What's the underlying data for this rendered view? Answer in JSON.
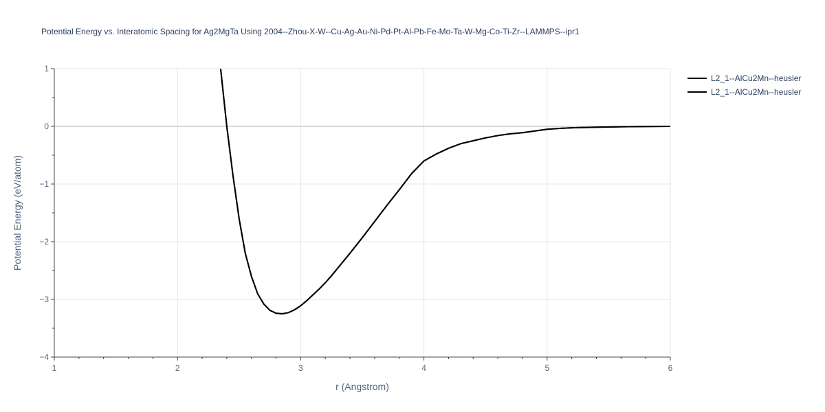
{
  "chart_data": {
    "type": "line",
    "title": "Potential Energy vs. Interatomic Spacing for Ag2MgTa Using 2004--Zhou-X-W--Cu-Ag-Au-Ni-Pd-Pt-Al-Pb-Fe-Mo-Ta-W-Mg-Co-Ti-Zr--LAMMPS--ipr1",
    "xlabel": "r (Angstrom)",
    "ylabel": "Potential Energy (eV/atom)",
    "xlim": [
      1,
      6
    ],
    "ylim": [
      -4,
      1
    ],
    "xticks": [
      1,
      2,
      3,
      4,
      5,
      6
    ],
    "yticks": [
      1,
      0,
      -1,
      -2,
      -3,
      -4
    ],
    "xtick_labels": [
      "1",
      "2",
      "3",
      "4",
      "5",
      "6"
    ],
    "ytick_labels": [
      "1",
      "0",
      "−1",
      "−2",
      "−3",
      "−4"
    ],
    "grid": true,
    "legend_position": "top-right",
    "series": [
      {
        "name": "L2_1--AlCu2Mn--heusler",
        "color": "#000000",
        "x": [
          2.35,
          2.4,
          2.45,
          2.5,
          2.55,
          2.6,
          2.65,
          2.7,
          2.75,
          2.8,
          2.85,
          2.9,
          2.95,
          3.0,
          3.05,
          3.1,
          3.15,
          3.2,
          3.25,
          3.3,
          3.4,
          3.5,
          3.6,
          3.7,
          3.8,
          3.9,
          4.0,
          4.1,
          4.2,
          4.3,
          4.4,
          4.5,
          4.6,
          4.7,
          4.8,
          4.9,
          5.0,
          5.1,
          5.2,
          5.4,
          5.6,
          5.8,
          6.0
        ],
        "y": [
          1.0,
          0.0,
          -0.85,
          -1.6,
          -2.2,
          -2.6,
          -2.9,
          -3.08,
          -3.19,
          -3.24,
          -3.25,
          -3.23,
          -3.18,
          -3.11,
          -3.02,
          -2.92,
          -2.82,
          -2.71,
          -2.59,
          -2.46,
          -2.2,
          -1.93,
          -1.65,
          -1.37,
          -1.1,
          -0.82,
          -0.6,
          -0.48,
          -0.38,
          -0.3,
          -0.25,
          -0.2,
          -0.16,
          -0.13,
          -0.11,
          -0.08,
          -0.05,
          -0.035,
          -0.025,
          -0.015,
          -0.008,
          -0.003,
          0.0
        ]
      },
      {
        "name": "L2_1--AlCu2Mn--heusler",
        "color": "#000000",
        "x": [
          2.35,
          2.4,
          2.45,
          2.5,
          2.55,
          2.6,
          2.65,
          2.7,
          2.75,
          2.8,
          2.85,
          2.9,
          2.95,
          3.0,
          3.05,
          3.1,
          3.15,
          3.2,
          3.25,
          3.3,
          3.4,
          3.5,
          3.6,
          3.7,
          3.8,
          3.9,
          4.0,
          4.1,
          4.2,
          4.3,
          4.4,
          4.5,
          4.6,
          4.7,
          4.8,
          4.9,
          5.0,
          5.1,
          5.2,
          5.4,
          5.6,
          5.8,
          6.0
        ],
        "y": [
          1.0,
          0.0,
          -0.85,
          -1.6,
          -2.2,
          -2.6,
          -2.9,
          -3.08,
          -3.19,
          -3.24,
          -3.25,
          -3.23,
          -3.18,
          -3.11,
          -3.02,
          -2.92,
          -2.82,
          -2.71,
          -2.59,
          -2.46,
          -2.2,
          -1.93,
          -1.65,
          -1.37,
          -1.1,
          -0.82,
          -0.6,
          -0.48,
          -0.38,
          -0.3,
          -0.25,
          -0.2,
          -0.16,
          -0.13,
          -0.11,
          -0.08,
          -0.05,
          -0.035,
          -0.025,
          -0.015,
          -0.008,
          -0.003,
          0.0
        ]
      }
    ]
  }
}
